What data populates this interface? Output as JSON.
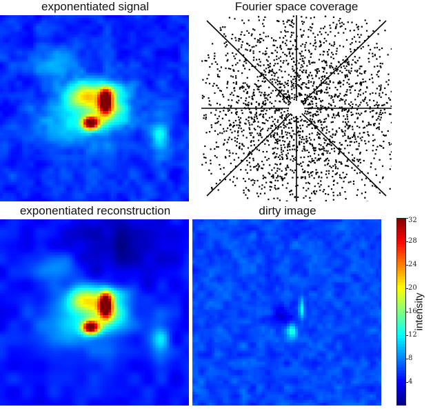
{
  "panels": {
    "signal": {
      "title": "exponentiated signal"
    },
    "coverage": {
      "title": "Fourier space coverage"
    },
    "reconstruction": {
      "title": "exponentiated reconstruction"
    },
    "dirty": {
      "title": "dirty image"
    }
  },
  "colorbar": {
    "label": "intensity",
    "colormap": "jet",
    "range": [
      0,
      32
    ],
    "ticks": [
      "32",
      "28",
      "24",
      "20",
      "16",
      "12",
      "8",
      "4"
    ]
  },
  "colors": {
    "background_blue": "#00008f",
    "peak_red": "#800000"
  }
}
